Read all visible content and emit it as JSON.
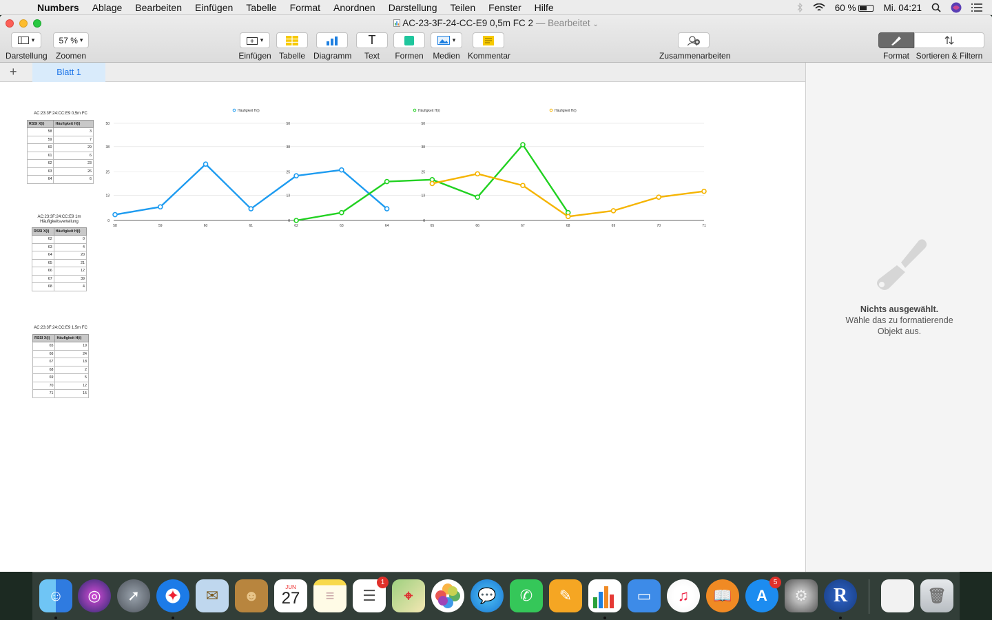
{
  "menubar": {
    "apple": "",
    "items": [
      "Numbers",
      "Ablage",
      "Bearbeiten",
      "Einfügen",
      "Tabelle",
      "Format",
      "Anordnen",
      "Darstellung",
      "Teilen",
      "Fenster",
      "Hilfe"
    ],
    "battery": "60 %",
    "clock": "Mi. 04:21"
  },
  "window": {
    "title": "AC-23-3F-24-CC-E9 0,5m FC 2",
    "subtitle": "— Bearbeitet"
  },
  "toolbar": {
    "view_label": "Darstellung",
    "zoom_value": "57 %",
    "zoom_label": "Zoomen",
    "insert_label": "Einfügen",
    "table_label": "Tabelle",
    "chart_label": "Diagramm",
    "text_label": "Text",
    "shapes_label": "Formen",
    "media_label": "Medien",
    "comment_label": "Kommentar",
    "collab_label": "Zusammenarbeiten",
    "format_label": "Format",
    "sort_label": "Sortieren & Filtern"
  },
  "sheet": {
    "add": "+",
    "tab": "Blatt 1"
  },
  "sidebar": {
    "title": "Nichts ausgewählt.",
    "line1": "Wähle das zu formatierende",
    "line2": "Objekt aus."
  },
  "tables": [
    {
      "title": "AC:23:3F:24:CC:E9 0,5m FC",
      "headers": [
        "RSSI X(i)",
        "Häufigkeit H(i)"
      ],
      "rows": [
        [
          "58",
          "3"
        ],
        [
          "59",
          "7"
        ],
        [
          "60",
          "29"
        ],
        [
          "61",
          "6"
        ],
        [
          "62",
          "23"
        ],
        [
          "63",
          "26"
        ],
        [
          "64",
          "6"
        ]
      ]
    },
    {
      "title": "AC:23:3F:24:CC:E9 1m",
      "title2": "Häufigkeitsverteilung",
      "headers": [
        "RSSI X(i)",
        "Häufigkeit H(i)"
      ],
      "rows": [
        [
          "62",
          "0"
        ],
        [
          "63",
          "4"
        ],
        [
          "64",
          "20"
        ],
        [
          "65",
          "21"
        ],
        [
          "66",
          "12"
        ],
        [
          "67",
          "39"
        ],
        [
          "68",
          "4"
        ]
      ]
    },
    {
      "title": "AC:23:3F:24:CC:E9 1,5m FC",
      "headers": [
        "RSSI X(i)",
        "Häufigkeit H(i)"
      ],
      "rows": [
        [
          "65",
          "19"
        ],
        [
          "66",
          "24"
        ],
        [
          "67",
          "18"
        ],
        [
          "68",
          "2"
        ],
        [
          "69",
          "5"
        ],
        [
          "70",
          "12"
        ],
        [
          "71",
          "15"
        ]
      ]
    }
  ],
  "chart_data": {
    "type": "line",
    "x": [
      58,
      59,
      60,
      61,
      62,
      63,
      64,
      65,
      66,
      67,
      68,
      69,
      70,
      71
    ],
    "ylim": [
      0,
      50
    ],
    "yticks": [
      0,
      13,
      25,
      38,
      50
    ],
    "grid": true,
    "legend_position": "top",
    "series": [
      {
        "name": "Häufigkeit H(i)",
        "color": "#1d9bf0",
        "points": [
          [
            58,
            3
          ],
          [
            59,
            7
          ],
          [
            60,
            29
          ],
          [
            61,
            6
          ],
          [
            62,
            23
          ],
          [
            63,
            26
          ],
          [
            64,
            6
          ]
        ]
      },
      {
        "name": "Häufigkeit H(i)",
        "color": "#21d121",
        "points": [
          [
            62,
            0
          ],
          [
            63,
            4
          ],
          [
            64,
            20
          ],
          [
            65,
            21
          ],
          [
            66,
            12
          ],
          [
            67,
            39
          ],
          [
            68,
            4
          ]
        ]
      },
      {
        "name": "Häufigkeit H(i)",
        "color": "#f5b400",
        "points": [
          [
            65,
            19
          ],
          [
            66,
            24
          ],
          [
            67,
            18
          ],
          [
            68,
            2
          ],
          [
            69,
            5
          ],
          [
            70,
            12
          ],
          [
            71,
            15
          ]
        ]
      }
    ]
  },
  "dock": {
    "calendar_month": "JUN",
    "calendar_day": "27",
    "reminders_badge": "1",
    "appstore_badge": "5",
    "r_label": "R"
  }
}
